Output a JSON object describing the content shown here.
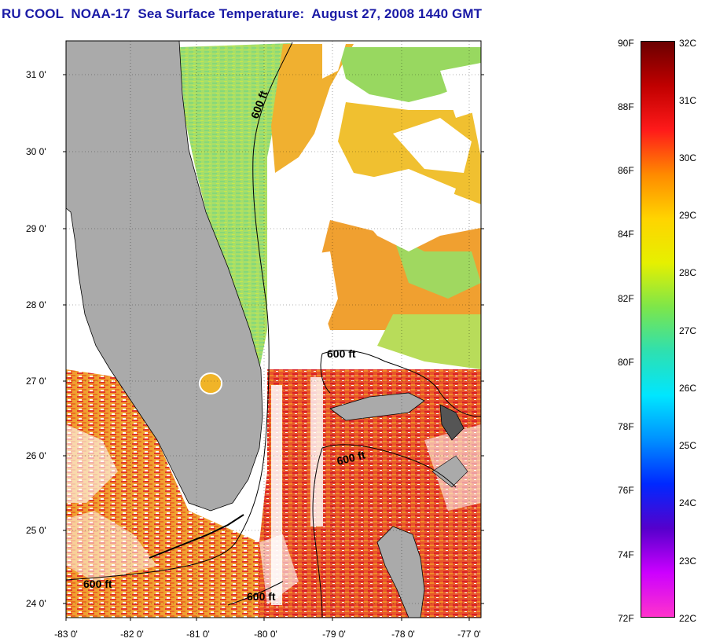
{
  "title": "RU COOL  NOAA-17  Sea Surface Temperature:  August 27, 2008 1440 GMT",
  "map": {
    "latitude_labels": [
      {
        "label": "31 0'",
        "value": 31
      },
      {
        "label": "30 0'",
        "value": 30
      },
      {
        "label": "29 0'",
        "value": 29
      },
      {
        "label": "28 0'",
        "value": 28
      },
      {
        "label": "27 0'",
        "value": 27
      },
      {
        "label": "26 0'",
        "value": 26
      },
      {
        "label": "25 0'",
        "value": 25
      },
      {
        "label": "24 0'",
        "value": 24
      }
    ],
    "longitude_labels": [
      {
        "label": "-83 0'",
        "value": -83
      },
      {
        "label": "-82 0'",
        "value": -82
      },
      {
        "label": "-81 0'",
        "value": -81
      },
      {
        "label": "-80 0'",
        "value": -80
      },
      {
        "label": "-79 0'",
        "value": -79
      },
      {
        "label": "-78 0'",
        "value": -78
      },
      {
        "label": "-77 0'",
        "value": -77
      }
    ],
    "contour_labels": [
      "600 ft",
      "600 ft",
      "600 ft",
      "600 ft",
      "600 ft"
    ],
    "colors": {
      "land": "#aaaaaa",
      "cloud": "#ffffff",
      "warm_water": "#f08a28",
      "hot_water": "#e2362a",
      "mid_water": "#f0b428",
      "cool_water": "#98dc6a"
    }
  },
  "colorbar": {
    "fahrenheit_labels": [
      "90F",
      "88F",
      "86F",
      "84F",
      "82F",
      "80F",
      "78F",
      "76F",
      "74F",
      "72F"
    ],
    "celsius_labels": [
      "32C",
      "31C",
      "30C",
      "29C",
      "28C",
      "27C",
      "26C",
      "25C",
      "24C",
      "23C",
      "22C"
    ],
    "gradient_colors": [
      "#6b0000",
      "#c00000",
      "#ff1a1a",
      "#ff8a00",
      "#ffd400",
      "#e6f000",
      "#7de64a",
      "#2ee0b0",
      "#00e6ff",
      "#0090ff",
      "#0028ff",
      "#5500cc",
      "#cc00ff",
      "#ff33cc"
    ]
  }
}
